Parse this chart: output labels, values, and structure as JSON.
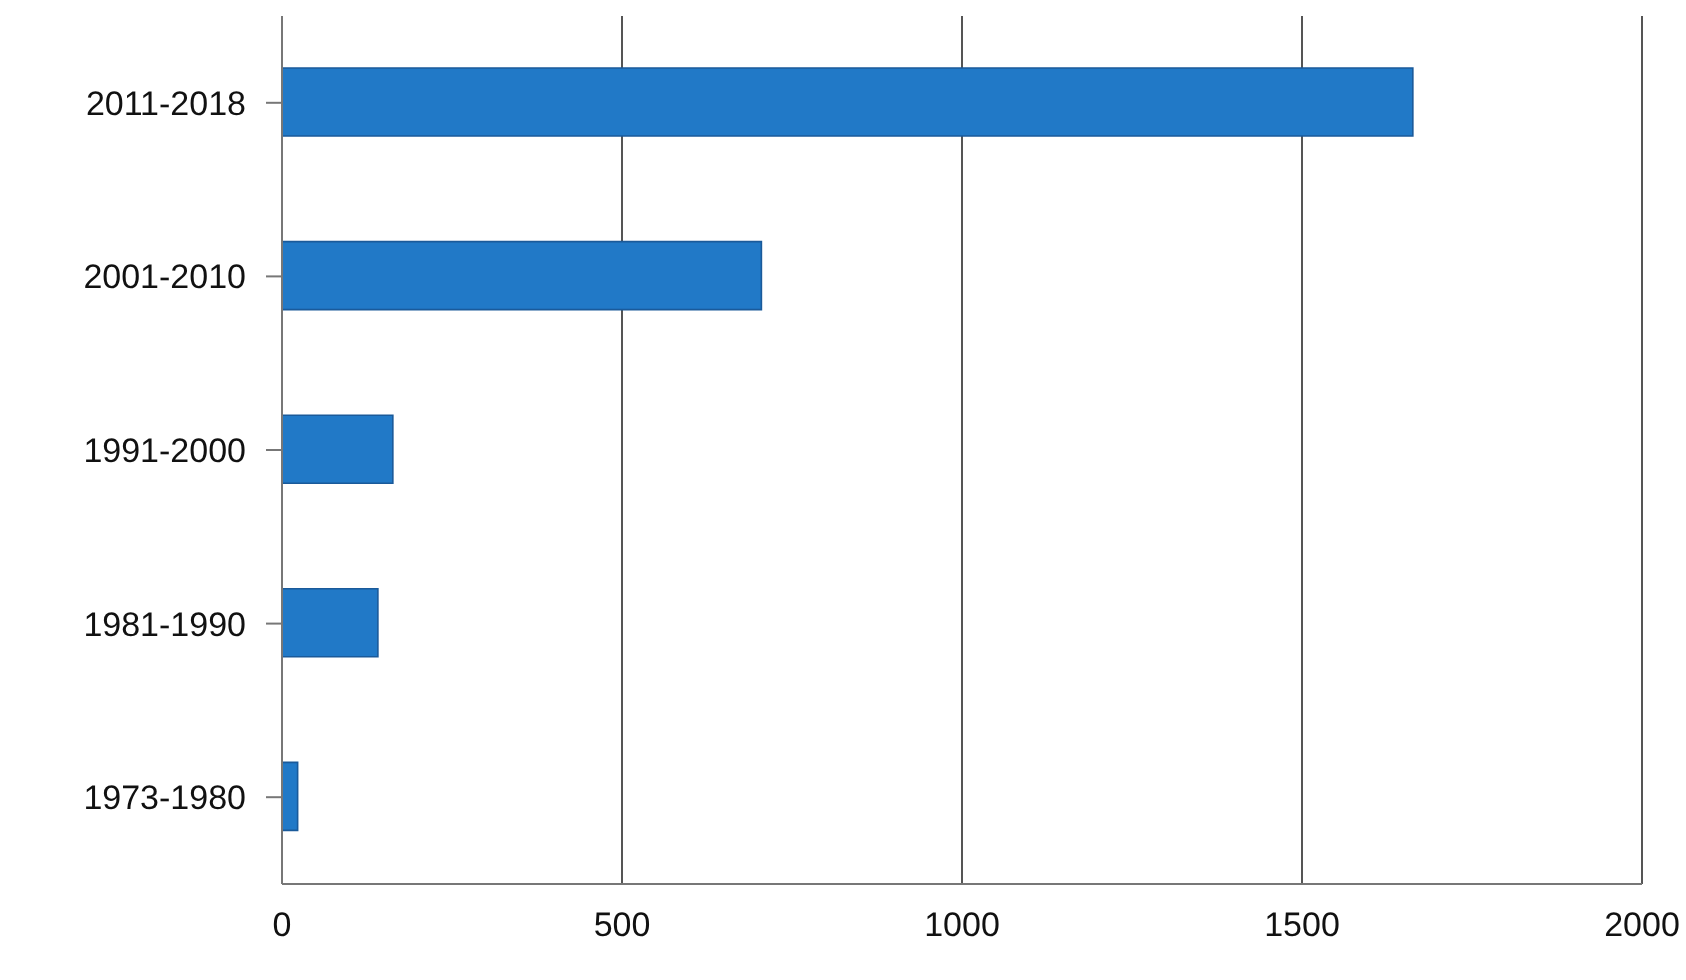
{
  "chart_data": {
    "type": "bar",
    "orientation": "horizontal",
    "categories": [
      "2011-2018",
      "2001-2010",
      "1991-2000",
      "1981-1990",
      "1973-1980"
    ],
    "values": [
      1663,
      705,
      163,
      141,
      23
    ],
    "color": "#2179c7",
    "xlim": [
      0,
      2000
    ],
    "xticks": [
      0,
      500,
      1000,
      1500,
      2000
    ],
    "grid": "x",
    "legend": false
  }
}
